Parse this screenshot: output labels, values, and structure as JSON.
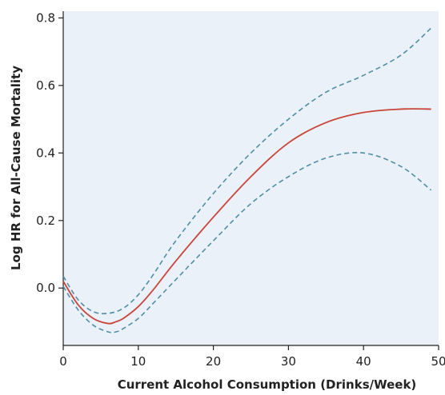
{
  "chart_data": {
    "type": "line",
    "xlabel": "Current Alcohol Consumption (Drinks/Week)",
    "ylabel": "Log HR for All-Cause Mortality",
    "xlim": [
      0,
      50
    ],
    "ylim": [
      -0.17,
      0.82
    ],
    "xticks": [
      0,
      10,
      20,
      30,
      40,
      50
    ],
    "yticks": [
      0.0,
      0.2,
      0.4,
      0.6,
      0.8
    ],
    "xtick_labels": [
      "0",
      "10",
      "20",
      "30",
      "40",
      "50"
    ],
    "ytick_labels": [
      "0.0",
      "0.2",
      "0.4",
      "0.6",
      "0.8"
    ],
    "grid": false,
    "legend": null,
    "colors": {
      "background": "#eaf1f8",
      "estimate": "#c8453a",
      "ci": "#4f8ea3"
    },
    "series": [
      {
        "style": "solid",
        "color": "#c8453a",
        "x": [
          0,
          2,
          4,
          6,
          7,
          8,
          10,
          12,
          15,
          20,
          25,
          30,
          35,
          40,
          45,
          49
        ],
        "y": [
          0.02,
          -0.05,
          -0.09,
          -0.105,
          -0.1,
          -0.09,
          -0.055,
          -0.005,
          0.08,
          0.21,
          0.33,
          0.43,
          0.49,
          0.52,
          0.53,
          0.53
        ]
      },
      {
        "style": "dashed",
        "color": "#4f8ea3",
        "x": [
          0,
          2,
          4,
          6,
          8,
          10,
          12,
          15,
          20,
          25,
          30,
          35,
          40,
          45,
          49
        ],
        "y": [
          0.035,
          -0.035,
          -0.07,
          -0.075,
          -0.06,
          -0.02,
          0.04,
          0.14,
          0.28,
          0.4,
          0.5,
          0.58,
          0.63,
          0.69,
          0.77
        ]
      },
      {
        "style": "dashed",
        "color": "#4f8ea3",
        "x": [
          0,
          2,
          4,
          6,
          7,
          8,
          10,
          12,
          15,
          20,
          25,
          30,
          35,
          40,
          45,
          49
        ],
        "y": [
          0.005,
          -0.065,
          -0.11,
          -0.13,
          -0.13,
          -0.12,
          -0.09,
          -0.045,
          0.025,
          0.14,
          0.25,
          0.33,
          0.385,
          0.4,
          0.36,
          0.29
        ]
      }
    ]
  }
}
